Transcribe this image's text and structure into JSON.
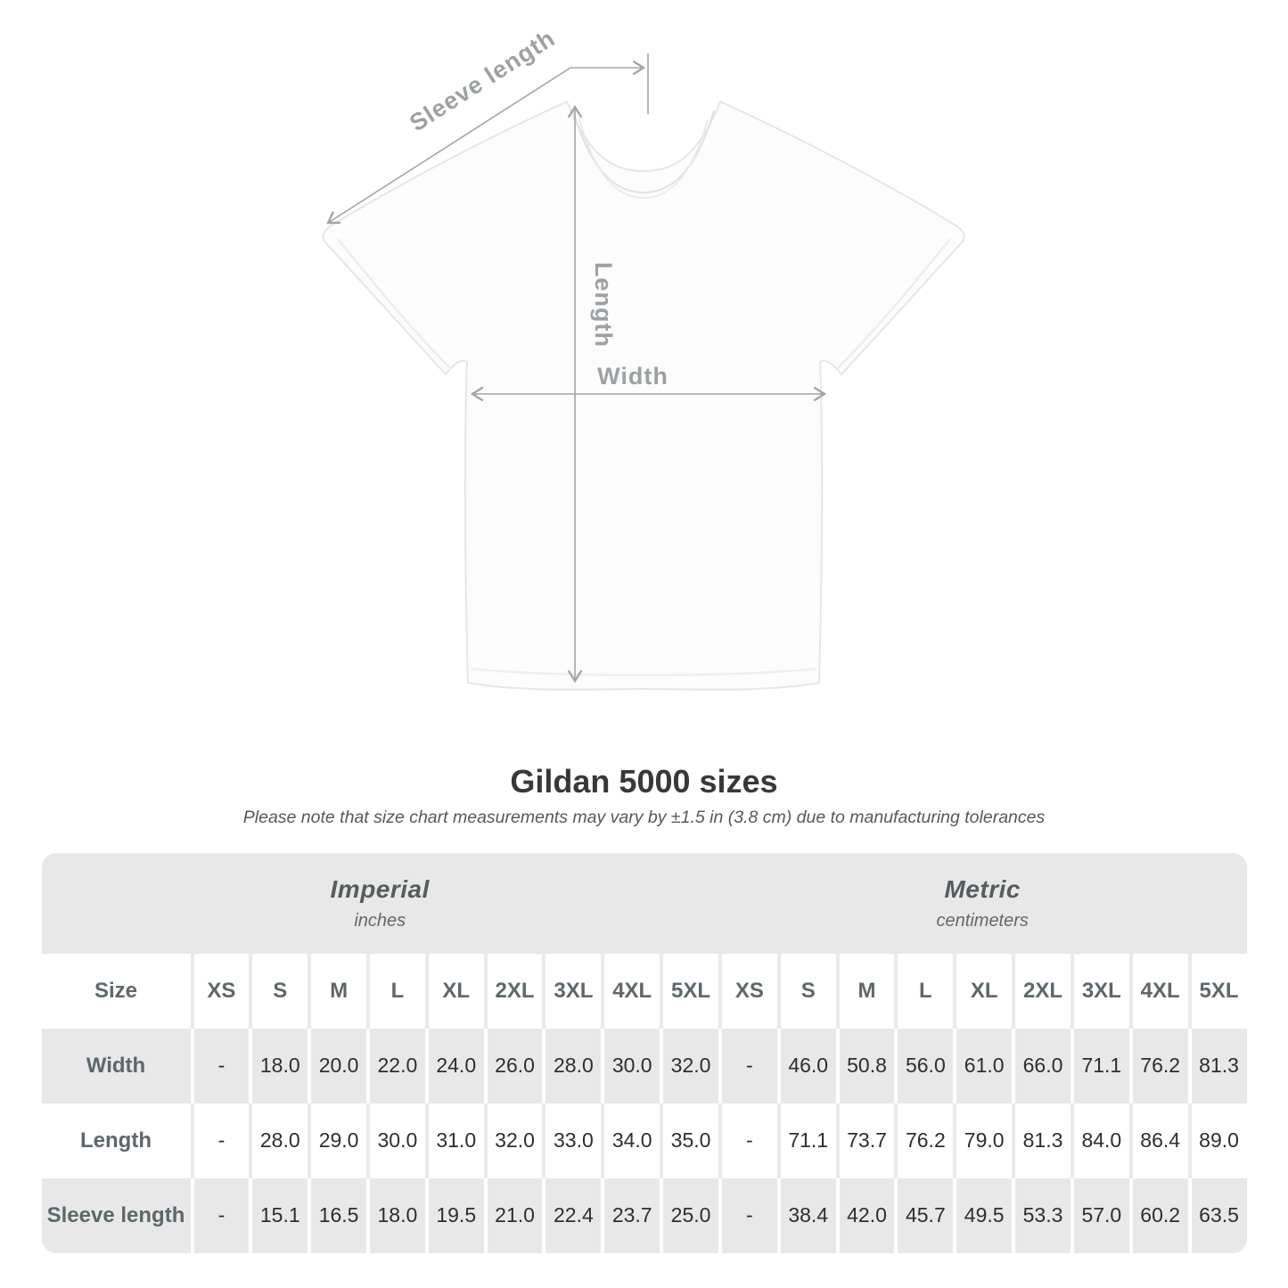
{
  "diagram": {
    "sleeve_length_label": "Sleeve length",
    "length_label": "Length",
    "width_label": "Width",
    "annotation_color": "#a2a5a7"
  },
  "title": "Gildan 5000 sizes",
  "note": "Please note that size chart measurements may vary by ±1.5 in (3.8 cm) due to manufacturing tolerances",
  "chart_data": {
    "type": "table",
    "title": "Gildan 5000 sizes",
    "corner_label": "Size",
    "sections": [
      {
        "name": "Imperial",
        "unit": "inches"
      },
      {
        "name": "Metric",
        "unit": "centimeters"
      }
    ],
    "sizes": [
      "XS",
      "S",
      "M",
      "L",
      "XL",
      "2XL",
      "3XL",
      "4XL",
      "5XL"
    ],
    "rows": [
      {
        "label": "Width",
        "imperial": [
          "-",
          "18.0",
          "20.0",
          "22.0",
          "24.0",
          "26.0",
          "28.0",
          "30.0",
          "32.0"
        ],
        "metric": [
          "-",
          "46.0",
          "50.8",
          "56.0",
          "61.0",
          "66.0",
          "71.1",
          "76.2",
          "81.3"
        ]
      },
      {
        "label": "Length",
        "imperial": [
          "-",
          "28.0",
          "29.0",
          "30.0",
          "31.0",
          "32.0",
          "33.0",
          "34.0",
          "35.0"
        ],
        "metric": [
          "-",
          "71.1",
          "73.7",
          "76.2",
          "79.0",
          "81.3",
          "84.0",
          "86.4",
          "89.0"
        ]
      },
      {
        "label": "Sleeve length",
        "imperial": [
          "-",
          "15.1",
          "16.5",
          "18.0",
          "19.5",
          "21.0",
          "22.4",
          "23.7",
          "25.0"
        ],
        "metric": [
          "-",
          "38.4",
          "42.0",
          "45.7",
          "49.5",
          "53.3",
          "57.0",
          "60.2",
          "63.5"
        ]
      }
    ],
    "colors": {
      "band_bg": "#e8e8e8",
      "alt_row_bg": "#e8e8e8",
      "header_text": "#5e676b",
      "value_text": "#2c2f31"
    }
  }
}
